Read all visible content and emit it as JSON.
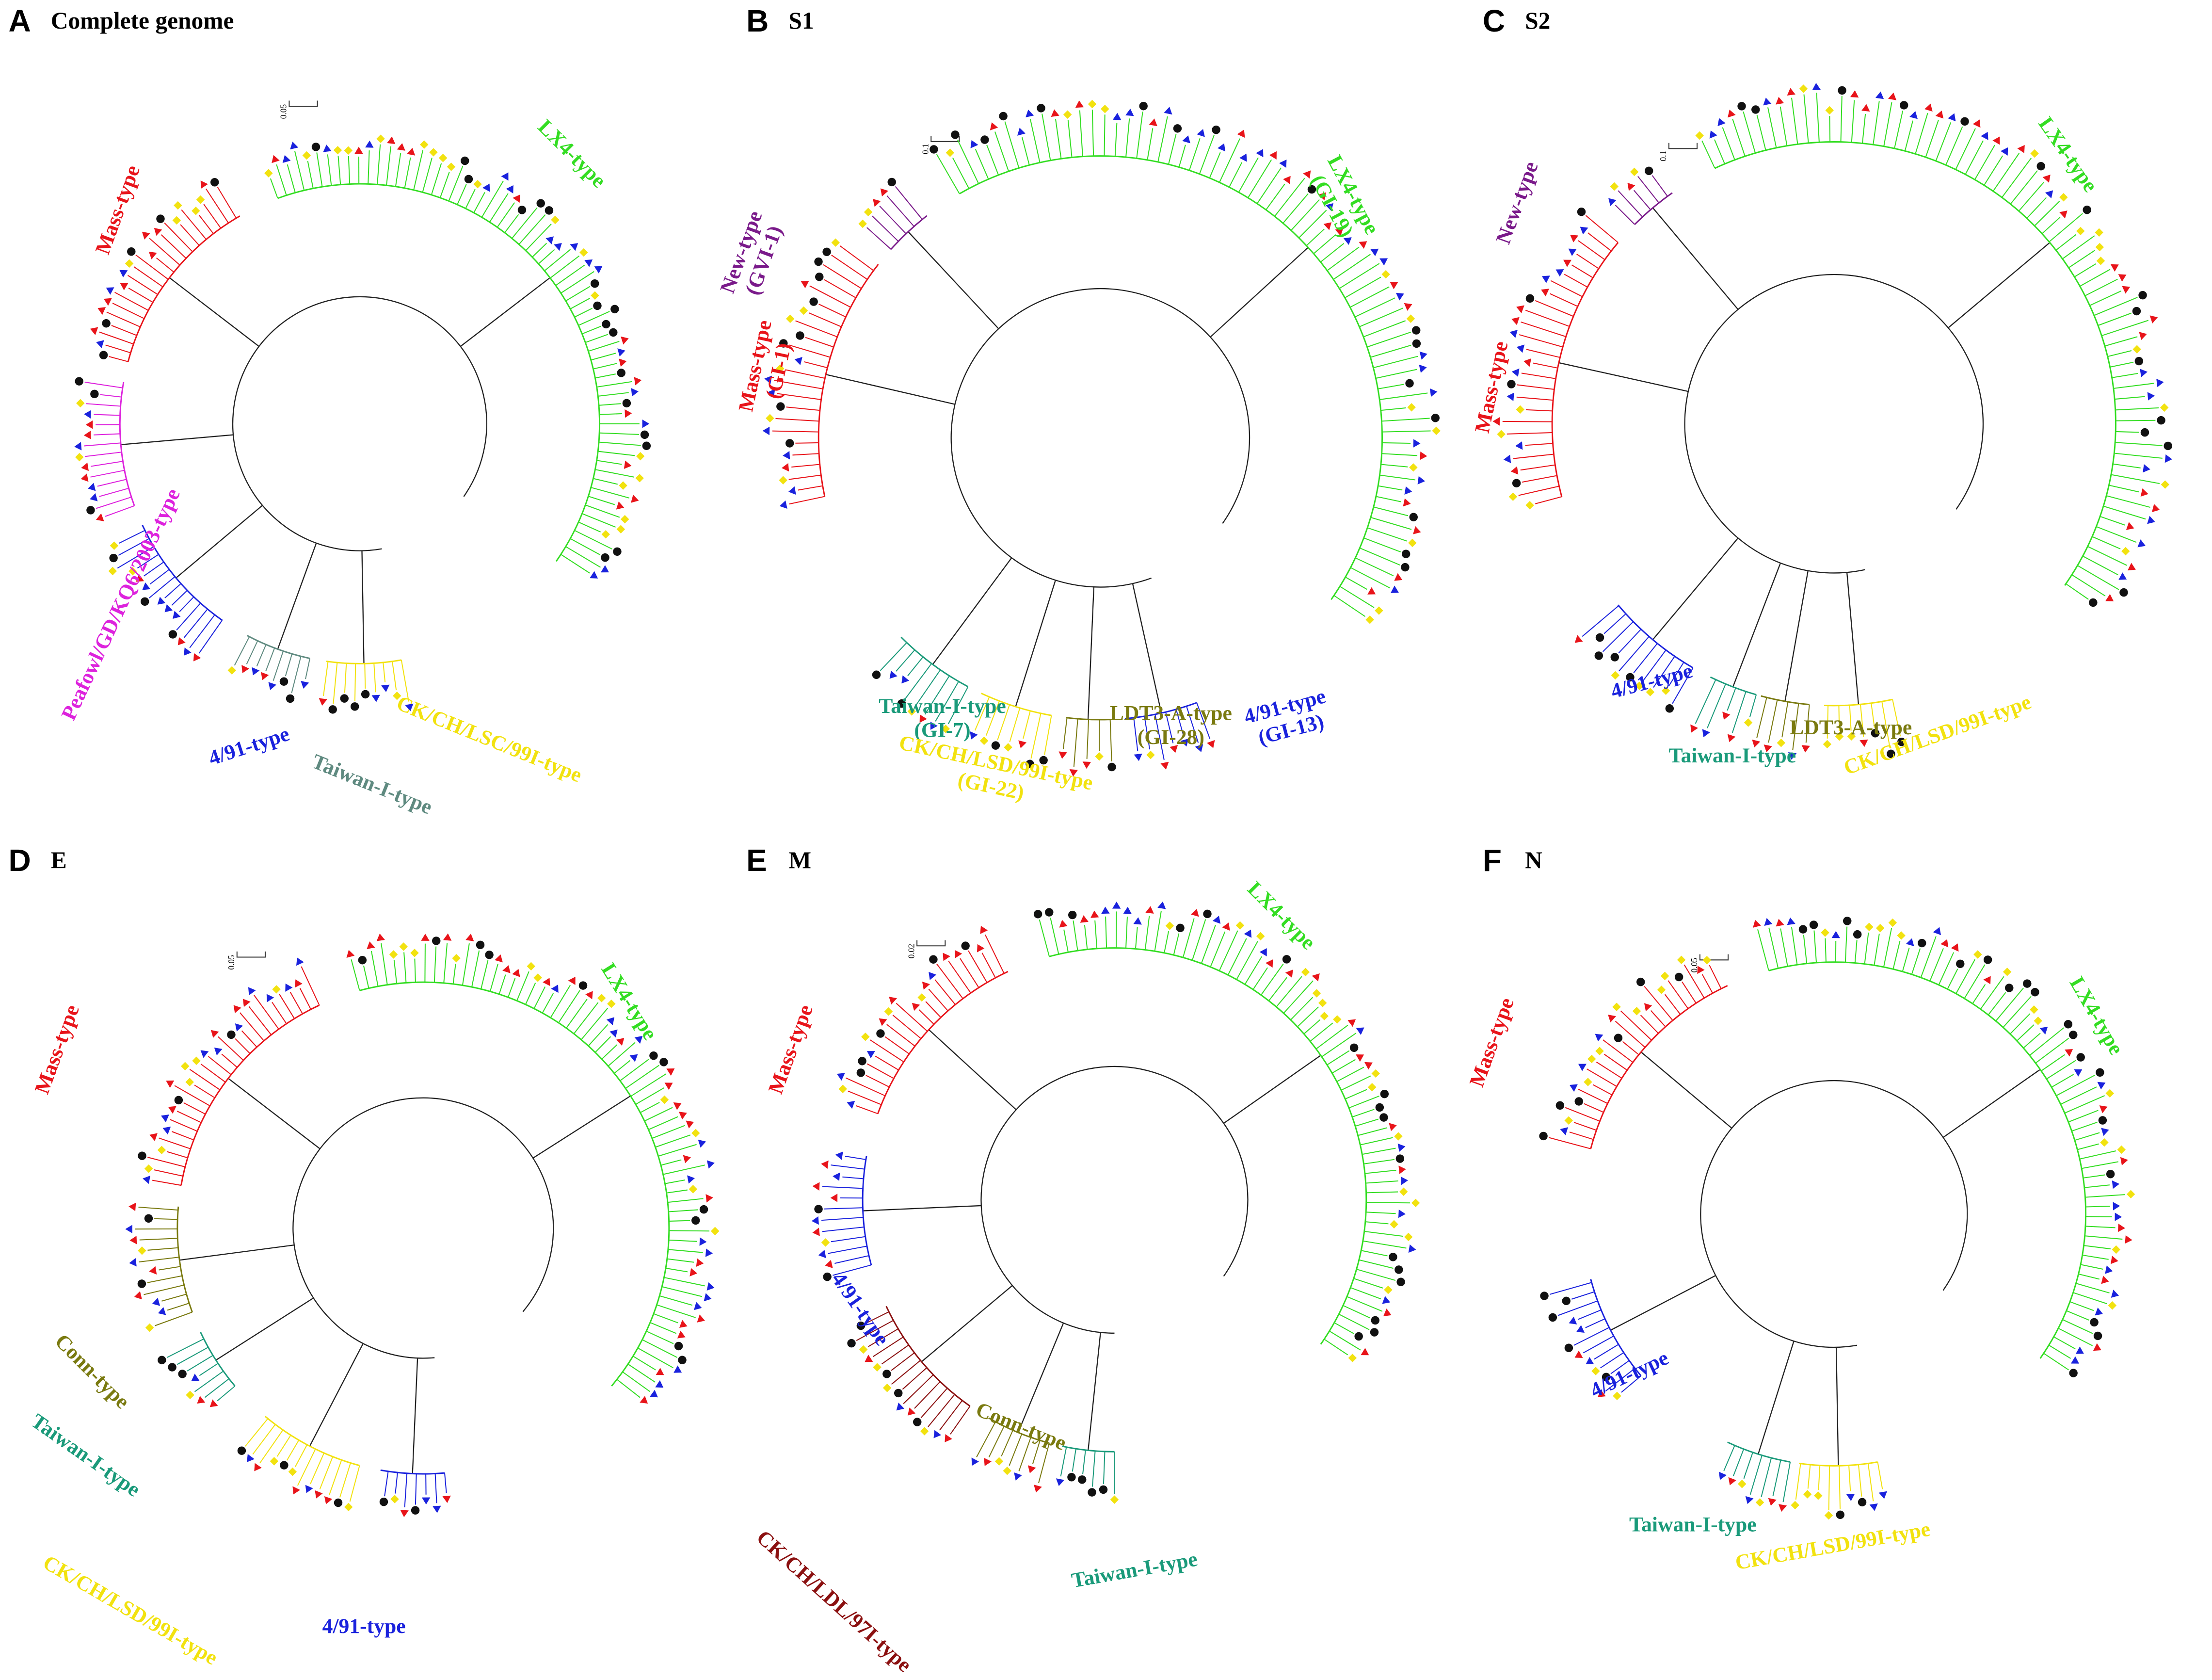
{
  "panels": [
    {
      "letter": "A",
      "title": "Complete genome",
      "scale": "0.05",
      "clades": [
        {
          "lines": [
            "Mass-type"
          ],
          "color": "#e8141a"
        },
        {
          "lines": [
            "LX4-type"
          ],
          "color": "#33dd22"
        },
        {
          "lines": [
            "Peafowl/GD/KQ6/2003-type"
          ],
          "color": "#dd22dd"
        },
        {
          "lines": [
            "4/91-type"
          ],
          "color": "#1a22dd"
        },
        {
          "lines": [
            "Taiwan-I-type"
          ],
          "color": "#5f8a80"
        },
        {
          "lines": [
            "CK/CH/LSC/99I-type"
          ],
          "color": "#f2e20f"
        }
      ]
    },
    {
      "letter": "B",
      "title": "S1",
      "scale": "0.1",
      "clades": [
        {
          "lines": [
            "New-type",
            "(GVI-1)"
          ],
          "color": "#7a1a8a"
        },
        {
          "lines": [
            "LX4-type",
            "(GI-19)"
          ],
          "color": "#33dd22"
        },
        {
          "lines": [
            "Mass-type",
            "(GI-1)"
          ],
          "color": "#e8141a"
        },
        {
          "lines": [
            "Taiwan-I-type",
            "(GI-7)"
          ],
          "color": "#1a9a7a"
        },
        {
          "lines": [
            "CK/CH/LSD/99I-type",
            "(GI-22)"
          ],
          "color": "#f2e20f"
        },
        {
          "lines": [
            "LDT3-A-type",
            "(GI-28)"
          ],
          "color": "#7a7a10"
        },
        {
          "lines": [
            "4/91-type",
            "(GI-13)"
          ],
          "color": "#1a22dd"
        }
      ]
    },
    {
      "letter": "C",
      "title": "S2",
      "scale": "0.1",
      "clades": [
        {
          "lines": [
            "New-type"
          ],
          "color": "#7a1a8a"
        },
        {
          "lines": [
            "LX4-type"
          ],
          "color": "#33dd22"
        },
        {
          "lines": [
            "Mass-type"
          ],
          "color": "#e8141a"
        },
        {
          "lines": [
            "4/91-type"
          ],
          "color": "#1a22dd"
        },
        {
          "lines": [
            "LDT3-A-type"
          ],
          "color": "#7a7a10"
        },
        {
          "lines": [
            "Taiwan-I-type"
          ],
          "color": "#1a9a7a"
        },
        {
          "lines": [
            "CK/CH/LSD/99I-type"
          ],
          "color": "#f2e20f"
        }
      ]
    },
    {
      "letter": "D",
      "title": "E",
      "scale": "0.05",
      "clades": [
        {
          "lines": [
            "Mass-type"
          ],
          "color": "#e8141a"
        },
        {
          "lines": [
            "LX4-type"
          ],
          "color": "#33dd22"
        },
        {
          "lines": [
            "Conn-type"
          ],
          "color": "#7a7a10"
        },
        {
          "lines": [
            "Taiwan-I-type"
          ],
          "color": "#1a9a7a"
        },
        {
          "lines": [
            "CK/CH/LSD/99I-type"
          ],
          "color": "#f2e20f"
        },
        {
          "lines": [
            "4/91-type"
          ],
          "color": "#1a22dd"
        }
      ]
    },
    {
      "letter": "E",
      "title": "M",
      "scale": "0.02",
      "clades": [
        {
          "lines": [
            "Mass-type"
          ],
          "color": "#e8141a"
        },
        {
          "lines": [
            "LX4-type"
          ],
          "color": "#33dd22"
        },
        {
          "lines": [
            "4/91-type"
          ],
          "color": "#1a22dd"
        },
        {
          "lines": [
            "Conn-type"
          ],
          "color": "#7a7a10"
        },
        {
          "lines": [
            "Taiwan-I-type"
          ],
          "color": "#1a9a7a"
        },
        {
          "lines": [
            "CK/CH/LDL/97I-type"
          ],
          "color": "#8b1010"
        }
      ]
    },
    {
      "letter": "F",
      "title": "N",
      "scale": "0.05",
      "clades": [
        {
          "lines": [
            "Mass-type"
          ],
          "color": "#e8141a"
        },
        {
          "lines": [
            "LX4-type"
          ],
          "color": "#33dd22"
        },
        {
          "lines": [
            "4/91-type"
          ],
          "color": "#1a22dd"
        },
        {
          "lines": [
            "Taiwan-I-type"
          ],
          "color": "#1a9a7a"
        },
        {
          "lines": [
            "CK/CH/LSD/99I-type"
          ],
          "color": "#f2e20f"
        }
      ]
    }
  ]
}
